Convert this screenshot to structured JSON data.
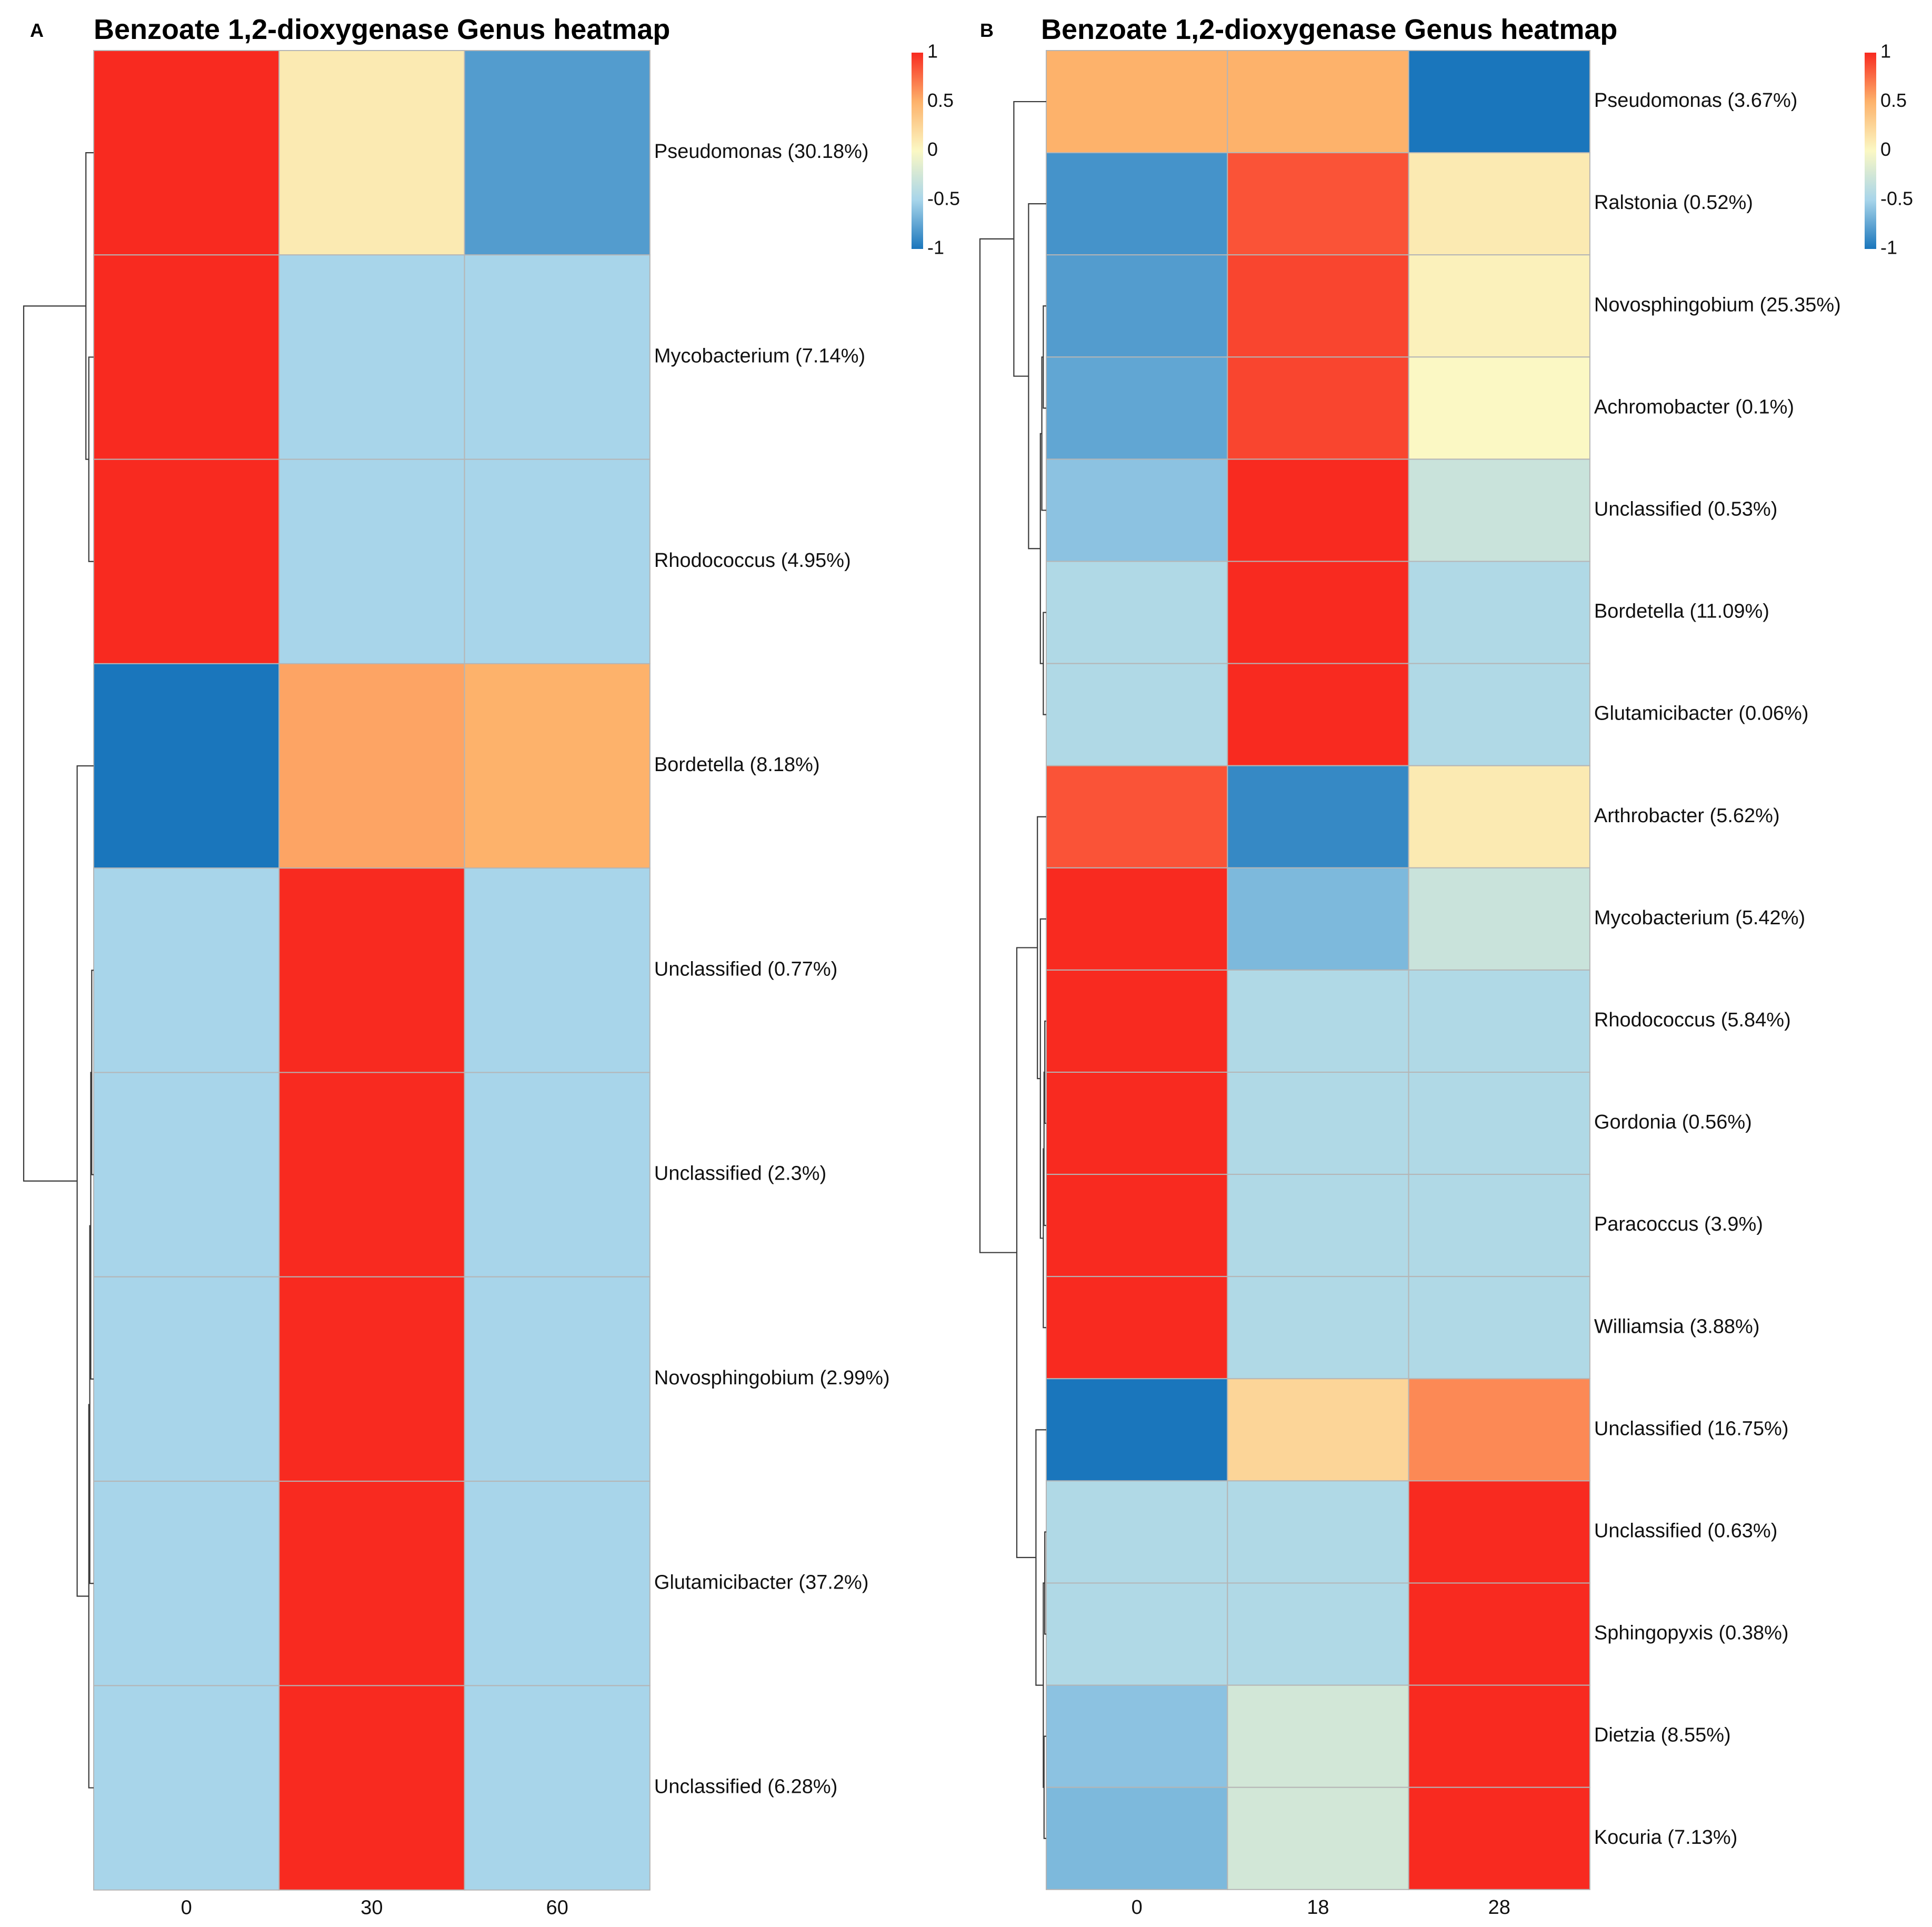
{
  "chart_data": [
    {
      "type": "heatmap",
      "panel_label": "A",
      "title": "Benzoate 1,2-dioxygenase Genus heatmap",
      "columns": [
        "0",
        "30",
        "60"
      ],
      "rows": [
        "Pseudomonas (30.18%)",
        "Mycobacterium (7.14%)",
        "Rhodococcus (4.95%)",
        "Bordetella (8.18%)",
        "Unclassified (0.77%)",
        "Unclassified (2.3%)",
        "Novosphingobium (2.99%)",
        "Glutamicibacter (37.2%)",
        "Unclassified (6.28%)"
      ],
      "values": [
        [
          1.0,
          0.1,
          -0.8
        ],
        [
          1.0,
          -0.5,
          -0.5
        ],
        [
          1.0,
          -0.5,
          -0.5
        ],
        [
          -1.0,
          0.55,
          0.5
        ],
        [
          -0.5,
          1.0,
          -0.5
        ],
        [
          -0.5,
          1.0,
          -0.5
        ],
        [
          -0.5,
          1.0,
          -0.5
        ],
        [
          -0.5,
          1.0,
          -0.5
        ],
        [
          -0.5,
          1.0,
          -0.5
        ]
      ],
      "color_scale": {
        "min": -1,
        "max": 1,
        "stops": [
          {
            "value": -1,
            "color": "#1a76bc"
          },
          {
            "value": -0.5,
            "color": "#a8d5ea"
          },
          {
            "value": 0,
            "color": "#fbf8c4"
          },
          {
            "value": 0.5,
            "color": "#fdb26b"
          },
          {
            "value": 1,
            "color": "#f82a20"
          }
        ],
        "ticks": [
          "1",
          "0.5",
          "0",
          "-0.5",
          "-1"
        ]
      },
      "dendrogram": {
        "merges": [
          {
            "children": [
              "r1",
              "r2"
            ],
            "height": 0.05
          },
          {
            "children": [
              "m0",
              "r0"
            ],
            "height": 0.08
          },
          {
            "children": [
              "r4",
              "r5"
            ],
            "height": 0.02
          },
          {
            "children": [
              "m2",
              "r6"
            ],
            "height": 0.03
          },
          {
            "children": [
              "m3",
              "r7"
            ],
            "height": 0.04
          },
          {
            "children": [
              "m4",
              "r8"
            ],
            "height": 0.05
          },
          {
            "children": [
              "m5",
              "r3"
            ],
            "height": 0.17
          },
          {
            "children": [
              "m1",
              "m6"
            ],
            "height": 0.72
          }
        ]
      }
    },
    {
      "type": "heatmap",
      "panel_label": "B",
      "title": "Benzoate 1,2-dioxygenase Genus heatmap",
      "columns": [
        "0",
        "18",
        "28"
      ],
      "rows": [
        "Pseudomonas (3.67%)",
        "Ralstonia (0.52%)",
        "Novosphingobium (25.35%)",
        "Achromobacter (0.1%)",
        "Unclassified (0.53%)",
        "Bordetella (11.09%)",
        "Glutamicibacter (0.06%)",
        "Arthrobacter (5.62%)",
        "Mycobacterium (5.42%)",
        "Rhodococcus (5.84%)",
        "Gordonia (0.56%)",
        "Paracoccus (3.9%)",
        "Williamsia (3.88%)",
        "Unclassified (16.75%)",
        "Unclassified (0.63%)",
        "Sphingopyxis (0.38%)",
        "Dietzia (8.55%)",
        "Kocuria (7.13%)"
      ],
      "values": [
        [
          0.5,
          0.5,
          -1.0
        ],
        [
          -0.85,
          0.85,
          0.1
        ],
        [
          -0.8,
          0.9,
          0.05
        ],
        [
          -0.75,
          0.9,
          0.0
        ],
        [
          -0.6,
          1.0,
          -0.3
        ],
        [
          -0.45,
          1.0,
          -0.45
        ],
        [
          -0.45,
          1.0,
          -0.45
        ],
        [
          0.85,
          -0.9,
          0.1
        ],
        [
          1.0,
          -0.65,
          -0.3
        ],
        [
          1.0,
          -0.45,
          -0.45
        ],
        [
          1.0,
          -0.45,
          -0.45
        ],
        [
          1.0,
          -0.45,
          -0.45
        ],
        [
          1.0,
          -0.45,
          -0.45
        ],
        [
          -1.0,
          0.25,
          0.65
        ],
        [
          -0.45,
          -0.45,
          1.0
        ],
        [
          -0.45,
          -0.45,
          1.0
        ],
        [
          -0.6,
          -0.25,
          1.0
        ],
        [
          -0.65,
          -0.25,
          1.0
        ]
      ],
      "color_scale": {
        "min": -1,
        "max": 1,
        "stops": [
          {
            "value": -1,
            "color": "#1a76bc"
          },
          {
            "value": -0.5,
            "color": "#a8d5ea"
          },
          {
            "value": 0,
            "color": "#fbf8c4"
          },
          {
            "value": 0.5,
            "color": "#fdb26b"
          },
          {
            "value": 1,
            "color": "#f82a20"
          }
        ],
        "ticks": [
          "1",
          "0.5",
          "0",
          "-0.5",
          "-1"
        ]
      },
      "dendrogram": {
        "merges": [
          {
            "children": [
              "r2",
              "r3"
            ],
            "height": 0.02
          },
          {
            "children": [
              "m0",
              "r4"
            ],
            "height": 0.03
          },
          {
            "children": [
              "r5",
              "r6"
            ],
            "height": 0.02
          },
          {
            "children": [
              "m1",
              "m2"
            ],
            "height": 0.04
          },
          {
            "children": [
              "r1",
              "m3"
            ],
            "height": 0.12
          },
          {
            "children": [
              "r0",
              "m4"
            ],
            "height": 0.22
          },
          {
            "children": [
              "r9",
              "r10"
            ],
            "height": 0.01
          },
          {
            "children": [
              "m6",
              "r11"
            ],
            "height": 0.015
          },
          {
            "children": [
              "m7",
              "r12"
            ],
            "height": 0.02
          },
          {
            "children": [
              "r8",
              "m8"
            ],
            "height": 0.04
          },
          {
            "children": [
              "r7",
              "m9"
            ],
            "height": 0.06
          },
          {
            "children": [
              "r14",
              "r15"
            ],
            "height": 0.01
          },
          {
            "children": [
              "r16",
              "r17"
            ],
            "height": 0.015
          },
          {
            "children": [
              "m11",
              "m12"
            ],
            "height": 0.02
          },
          {
            "children": [
              "r13",
              "m13"
            ],
            "height": 0.07
          },
          {
            "children": [
              "m10",
              "m14"
            ],
            "height": 0.2
          },
          {
            "children": [
              "m5",
              "m15"
            ],
            "height": 0.45
          }
        ]
      }
    }
  ]
}
